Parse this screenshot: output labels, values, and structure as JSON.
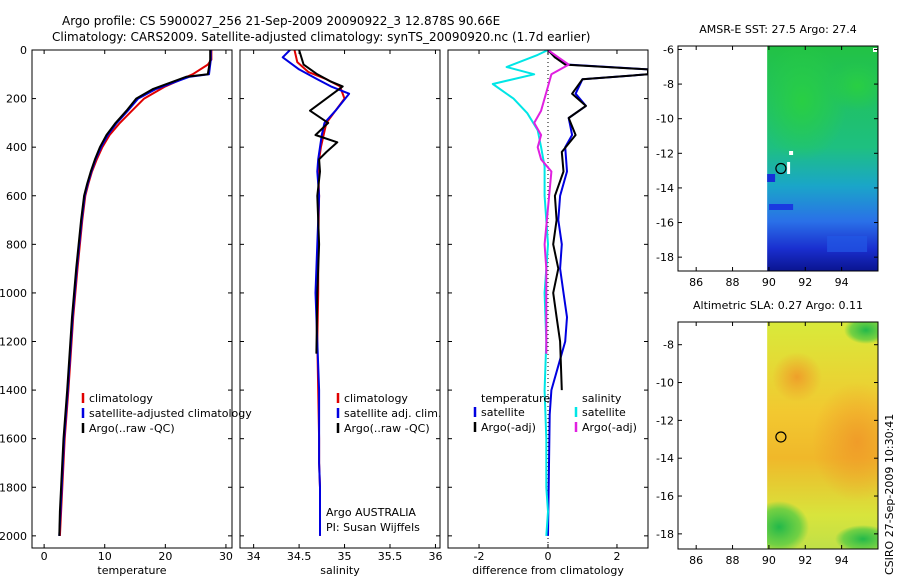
{
  "header": {
    "line1": "Argo profile: CS 5900027_256 21-Sep-2009 20090922_3 12.878S 90.66E",
    "line2": "Climatology: CARS2009. Satellite-adjusted climatology: synTS_20090920.nc (1.7d earlier)"
  },
  "side_label": "CSIRO 27-Sep-2009 10:30:41",
  "colors": {
    "red": "#e00000",
    "blue": "#0000e0",
    "black": "#000000",
    "cyan": "#00e6e6",
    "magenta": "#e020e0"
  },
  "chart_data": [
    {
      "type": "line",
      "id": "temperature",
      "xlabel": "temperature",
      "xlim": [
        -2,
        31
      ],
      "ylim": [
        2050,
        0
      ],
      "xticks": [
        0,
        10,
        20,
        30
      ],
      "yticks": [
        0,
        200,
        400,
        600,
        800,
        1000,
        1200,
        1400,
        1600,
        1800,
        2000
      ],
      "legend": [
        "climatology",
        "satellite-adjusted climatology",
        "Argo(..raw -QC)"
      ],
      "series": [
        {
          "name": "climatology",
          "color": "red",
          "x": [
            27.6,
            27.6,
            27.0,
            24.5,
            20,
            16.5,
            14.5,
            12.5,
            10.8,
            9.6,
            8.7,
            7.9,
            7.3,
            6.8,
            6.3,
            5.5,
            4.8,
            4.0,
            3.4,
            3.0,
            2.8,
            2.6
          ],
          "y": [
            0,
            40,
            60,
            100,
            150,
            200,
            250,
            300,
            350,
            400,
            450,
            500,
            550,
            600,
            700,
            900,
            1100,
            1400,
            1600,
            1800,
            1900,
            2000
          ]
        },
        {
          "name": "satellite-adjusted climatology",
          "color": "blue",
          "x": [
            27.5,
            27.5,
            27.2,
            24.0,
            18.5,
            15.5,
            13.8,
            12.0,
            10.5,
            9.4,
            8.5,
            7.8,
            7.2,
            6.7,
            6.2,
            5.4,
            4.7,
            3.9,
            3.3,
            2.9,
            2.7,
            2.5
          ],
          "y": [
            0,
            40,
            100,
            110,
            160,
            200,
            250,
            300,
            350,
            400,
            450,
            500,
            550,
            600,
            700,
            900,
            1100,
            1400,
            1600,
            1800,
            1900,
            2000
          ]
        },
        {
          "name": "Argo(..raw -QC)",
          "color": "black",
          "x": [
            27.4,
            27.4,
            27.0,
            23.5,
            18.0,
            15.2,
            13.6,
            11.8,
            10.3,
            9.2,
            8.4,
            7.7,
            7.1,
            6.6,
            6.1,
            5.3,
            4.6,
            3.8,
            3.2,
            2.8,
            2.6,
            2.5
          ],
          "y": [
            0,
            40,
            100,
            110,
            160,
            200,
            250,
            300,
            350,
            400,
            450,
            500,
            550,
            600,
            700,
            900,
            1100,
            1400,
            1600,
            1800,
            1900,
            2000
          ]
        }
      ]
    },
    {
      "type": "line",
      "id": "salinity",
      "xlabel": "salinity",
      "xlim": [
        33.85,
        36.05
      ],
      "ylim": [
        2050,
        0
      ],
      "xticks": [
        34,
        34.5,
        35,
        35.5,
        36
      ],
      "legend": [
        "climatology",
        "satellite adj. clim.",
        "Argo(..raw -QC)"
      ],
      "annotation": [
        "Argo AUSTRALIA",
        "PI: Susan Wijffels"
      ],
      "series": [
        {
          "name": "climatology",
          "color": "red",
          "x": [
            34.45,
            34.48,
            34.6,
            34.8,
            34.95,
            35.0,
            34.9,
            34.8,
            34.77,
            34.74,
            34.72,
            34.71,
            34.72,
            34.71,
            34.71,
            34.7,
            34.71,
            34.72,
            34.72,
            34.73,
            34.73
          ],
          "y": [
            0,
            50,
            90,
            120,
            150,
            200,
            250,
            300,
            350,
            400,
            450,
            500,
            600,
            800,
            1000,
            1200,
            1400,
            1600,
            1700,
            1800,
            2000
          ]
        },
        {
          "name": "satellite adj. clim.",
          "color": "blue",
          "x": [
            34.4,
            34.32,
            34.5,
            34.7,
            34.85,
            35.05,
            34.9,
            34.78,
            34.75,
            34.73,
            34.71,
            34.7,
            34.72,
            34.7,
            34.68,
            34.7,
            34.72,
            34.72,
            34.72,
            34.73,
            34.73
          ],
          "y": [
            0,
            30,
            80,
            120,
            150,
            180,
            250,
            300,
            350,
            400,
            450,
            500,
            600,
            800,
            1000,
            1200,
            1400,
            1600,
            1700,
            1800,
            2000
          ]
        },
        {
          "name": "Argo(..raw -QC)",
          "color": "black",
          "x": [
            34.5,
            34.55,
            34.7,
            34.85,
            34.98,
            34.62,
            34.82,
            34.68,
            34.92,
            34.8,
            34.72,
            34.73,
            34.7,
            34.72,
            34.7,
            34.69
          ],
          "y": [
            0,
            60,
            100,
            130,
            150,
            250,
            300,
            350,
            380,
            420,
            450,
            500,
            600,
            800,
            1000,
            1250
          ]
        }
      ]
    },
    {
      "type": "line",
      "id": "difference",
      "xlabel": "difference from climatology",
      "xlim": [
        -2.9,
        2.9
      ],
      "ylim": [
        2050,
        0
      ],
      "xticks": [
        -2,
        0,
        2
      ],
      "legend_left_title": "temperature",
      "legend_left": [
        "satellite",
        "Argo(-adj)"
      ],
      "legend_right_title": "salinity",
      "legend_right": [
        "satellite",
        "Argo(-adj)"
      ],
      "series": [
        {
          "name": "T satellite",
          "color": "blue",
          "x": [
            0,
            0.2,
            0.6,
            2.9,
            2.9,
            1.0,
            0.8,
            1.1,
            0.6,
            0.7,
            0.5,
            0.55,
            0.35,
            0.3,
            0.4,
            0.35,
            0.45,
            0.55,
            0.5,
            0.3,
            0.1,
            0.05,
            0.0
          ],
          "y": [
            0,
            30,
            60,
            80,
            100,
            120,
            180,
            230,
            280,
            350,
            400,
            500,
            600,
            700,
            800,
            900,
            1000,
            1100,
            1200,
            1300,
            1400,
            1500,
            2000
          ]
        },
        {
          "name": "T Argo(-adj)",
          "color": "black",
          "x": [
            0,
            0.2,
            0.5,
            2.9,
            2.9,
            1.0,
            0.7,
            1.1,
            0.6,
            0.8,
            0.4,
            0.45,
            0.2,
            0.25,
            0.15,
            0.3,
            0.15,
            0.25,
            0.35,
            0.4
          ],
          "y": [
            0,
            30,
            60,
            80,
            100,
            120,
            180,
            230,
            280,
            350,
            420,
            500,
            600,
            700,
            800,
            900,
            1000,
            1100,
            1200,
            1400
          ]
        },
        {
          "name": "S satellite",
          "color": "cyan",
          "x": [
            0,
            -0.3,
            -1.2,
            -0.4,
            -1.6,
            -1.0,
            -0.6,
            -0.3,
            -0.2,
            -0.1,
            -0.1,
            0.0,
            -0.1,
            -0.05,
            -0.1,
            -0.05,
            -0.05,
            0.0,
            -0.05
          ],
          "y": [
            0,
            20,
            70,
            100,
            140,
            200,
            260,
            330,
            400,
            480,
            600,
            800,
            1000,
            1200,
            1400,
            1600,
            1800,
            1900,
            2000
          ]
        },
        {
          "name": "S Argo(-adj)",
          "color": "magenta",
          "x": [
            0,
            0.3,
            0.6,
            0.1,
            0.0,
            -0.2,
            -0.4,
            -0.2,
            -0.3,
            -0.2,
            0.1,
            -0.1,
            -0.05,
            -0.05,
            -0.05
          ],
          "y": [
            0,
            30,
            60,
            100,
            150,
            250,
            300,
            350,
            400,
            450,
            500,
            800,
            900,
            1000,
            1250
          ]
        }
      ]
    },
    {
      "type": "heatmap",
      "id": "sst_map",
      "title": "AMSR-E SST: 27.5 Argo: 27.4",
      "xlim": [
        85,
        96
      ],
      "ylim": [
        -18.8,
        -5.8
      ],
      "xticks": [
        86,
        88,
        90,
        92,
        94
      ],
      "yticks": [
        -6,
        -8,
        -10,
        -12,
        -14,
        -16,
        -18
      ],
      "data_xmin": 89.9,
      "argo_position": {
        "lon": 90.66,
        "lat": -12.878
      }
    },
    {
      "type": "heatmap",
      "id": "sla_map",
      "title": "Altimetric SLA: 0.27 Argo: 0.11",
      "xlim": [
        85,
        96
      ],
      "ylim": [
        -18.8,
        -6.8
      ],
      "xticks": [
        86,
        88,
        90,
        92,
        94
      ],
      "yticks": [
        -8,
        -10,
        -12,
        -14,
        -16,
        -18
      ],
      "data_xmin": 89.9,
      "argo_position": {
        "lon": 90.66,
        "lat": -12.878
      }
    }
  ]
}
